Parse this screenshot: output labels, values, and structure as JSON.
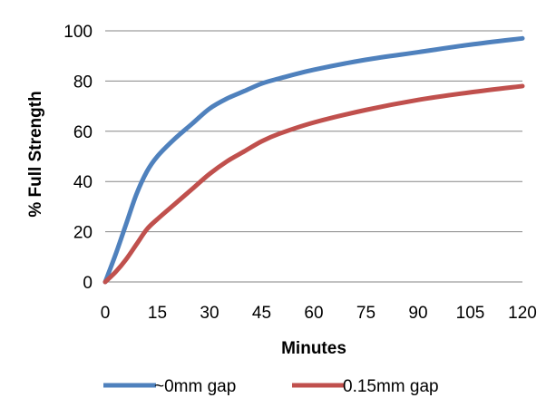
{
  "chart_data": {
    "type": "line",
    "xlabel": "Minutes",
    "ylabel": "% Full Strength",
    "xlim": [
      0,
      120
    ],
    "ylim": [
      0,
      100
    ],
    "x_ticks": [
      "0",
      "15",
      "30",
      "45",
      "60",
      "75",
      "90",
      "105",
      "120"
    ],
    "y_ticks": [
      "0",
      "20",
      "40",
      "60",
      "80",
      "100"
    ],
    "grid": "horizontal",
    "legend_position": "bottom",
    "series": [
      {
        "name": "~0mm gap",
        "color": "#4F81BD",
        "x": [
          0,
          3,
          6,
          9,
          12,
          15,
          20,
          25,
          30,
          35,
          40,
          45,
          50,
          60,
          75,
          90,
          105,
          120
        ],
        "y": [
          0,
          11,
          23,
          35,
          44,
          50,
          57,
          63,
          69,
          73,
          76,
          79,
          81,
          84.5,
          88.5,
          91.5,
          94.5,
          97
        ]
      },
      {
        "name": "0.15mm gap",
        "color": "#C0504D",
        "x": [
          0,
          3,
          6,
          9,
          12,
          15,
          20,
          25,
          30,
          35,
          40,
          45,
          50,
          60,
          75,
          90,
          105,
          120
        ],
        "y": [
          0,
          4,
          9,
          15,
          21,
          25,
          31,
          37,
          43,
          48,
          52,
          56,
          59,
          63.5,
          68.5,
          72.5,
          75.5,
          78
        ]
      }
    ]
  }
}
